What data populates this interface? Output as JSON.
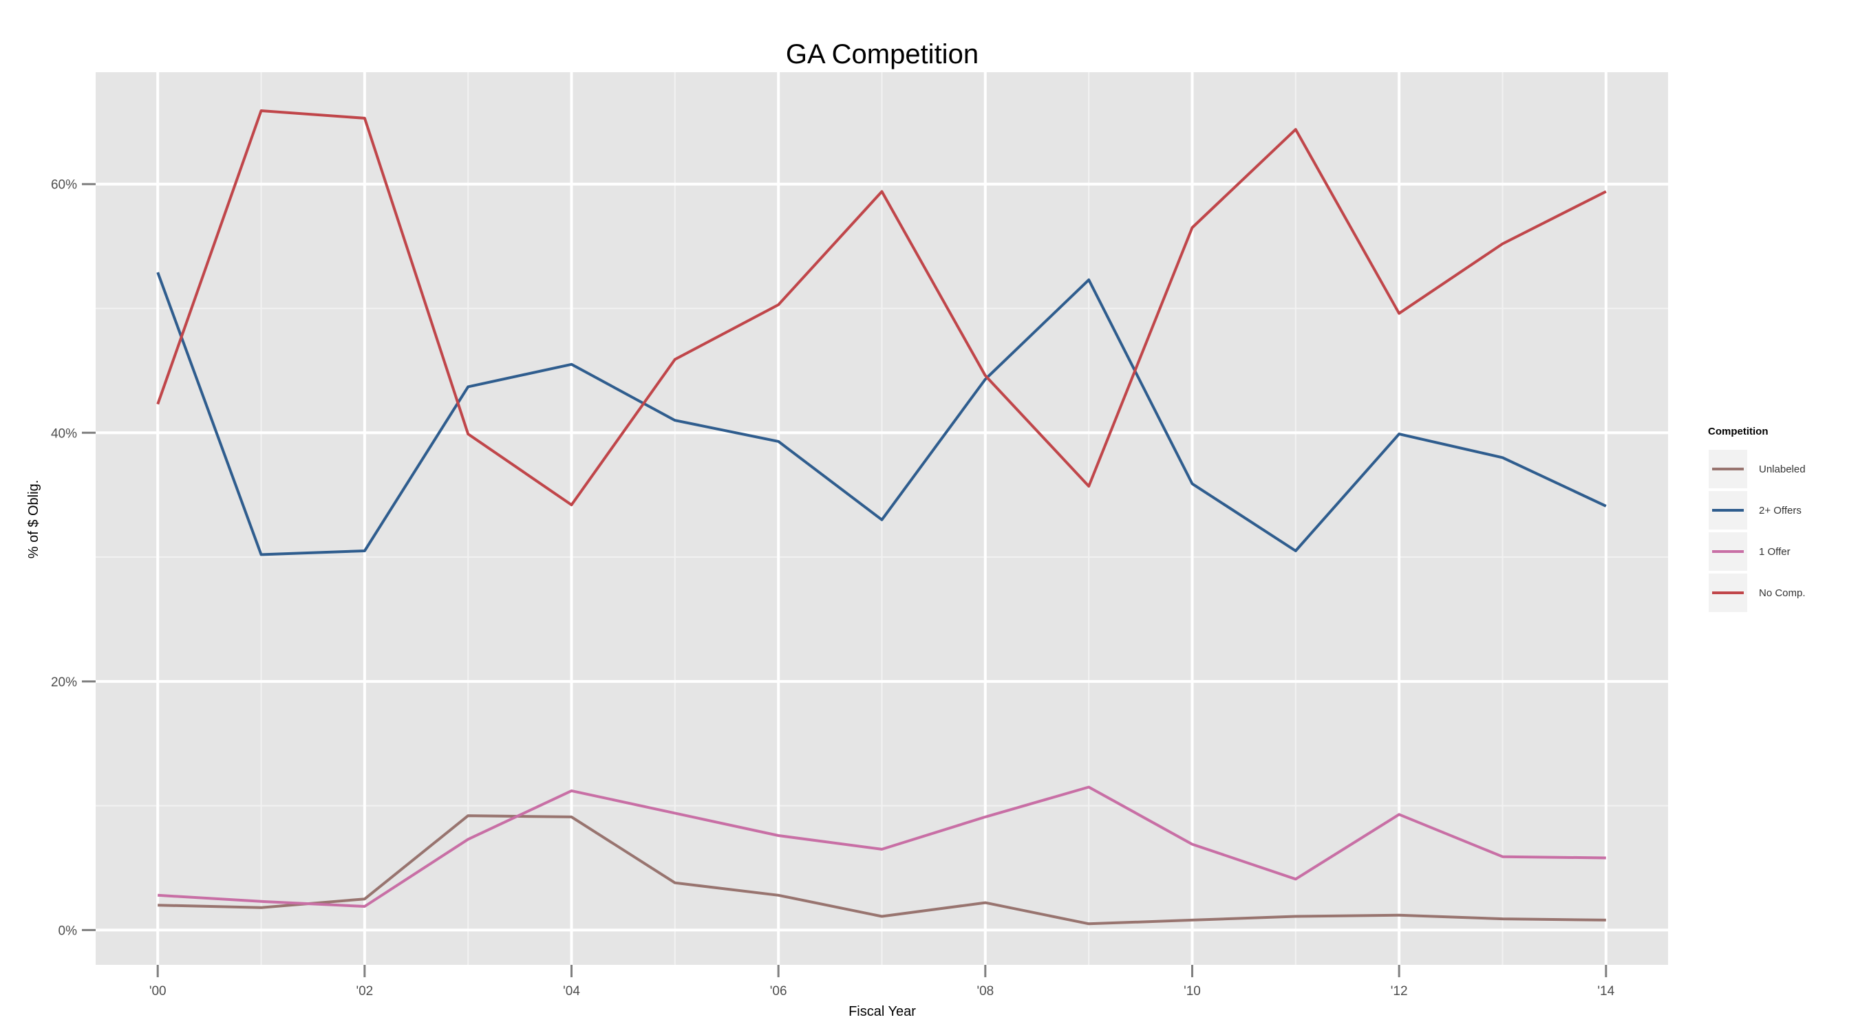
{
  "chart_data": {
    "type": "line",
    "title": "GA Competition",
    "xlabel": "Fiscal Year",
    "ylabel": "% of $ Oblig.",
    "x": [
      2000,
      2001,
      2002,
      2003,
      2004,
      2005,
      2006,
      2007,
      2008,
      2009,
      2010,
      2011,
      2012,
      2013,
      2014
    ],
    "xlim": [
      1999.4,
      2014.6
    ],
    "ylim": [
      -2.8,
      69
    ],
    "x_ticks": [
      {
        "value": 2000,
        "label": "'00"
      },
      {
        "value": 2002,
        "label": "'02"
      },
      {
        "value": 2004,
        "label": "'04"
      },
      {
        "value": 2006,
        "label": "'06"
      },
      {
        "value": 2008,
        "label": "'08"
      },
      {
        "value": 2010,
        "label": "'10"
      },
      {
        "value": 2012,
        "label": "'12"
      },
      {
        "value": 2014,
        "label": "'14"
      }
    ],
    "y_ticks": [
      {
        "value": 0,
        "label": "0%"
      },
      {
        "value": 20,
        "label": "20%"
      },
      {
        "value": 40,
        "label": "40%"
      },
      {
        "value": 60,
        "label": "60%"
      }
    ],
    "grid": true,
    "panel_background": "#e5e5e5",
    "legend": {
      "title": "Competition",
      "position": "right"
    },
    "series": [
      {
        "name": "Unlabeled",
        "color": "#98746f",
        "values": [
          2.0,
          1.8,
          2.5,
          9.2,
          9.1,
          3.8,
          2.8,
          1.1,
          2.2,
          0.5,
          0.8,
          1.1,
          1.2,
          0.9,
          0.8
        ]
      },
      {
        "name": "2+ Offers",
        "color": "#2f5d8e",
        "values": [
          52.9,
          30.2,
          30.5,
          43.7,
          45.5,
          41.0,
          39.3,
          33.0,
          44.3,
          52.3,
          35.9,
          30.5,
          39.9,
          38.0,
          34.1
        ]
      },
      {
        "name": "1 Offer",
        "color": "#c86fa5",
        "values": [
          2.8,
          2.3,
          1.9,
          7.3,
          11.2,
          9.4,
          7.6,
          6.5,
          9.1,
          11.5,
          6.9,
          4.1,
          9.3,
          5.9,
          5.8
        ]
      },
      {
        "name": "No Comp.",
        "color": "#c0464a",
        "values": [
          42.3,
          65.9,
          65.3,
          39.9,
          34.2,
          45.9,
          50.3,
          59.4,
          44.6,
          35.7,
          56.5,
          64.4,
          49.6,
          55.2,
          59.4
        ]
      }
    ]
  }
}
